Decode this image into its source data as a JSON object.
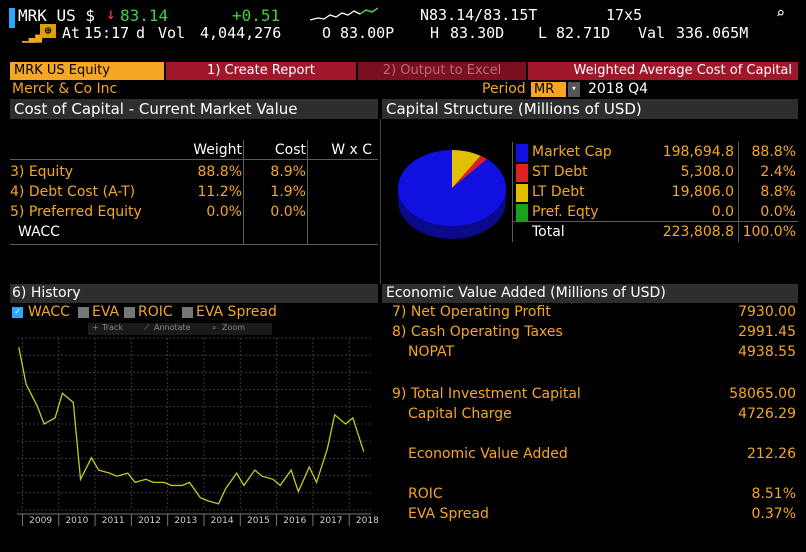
{
  "ticker_line": {
    "ticker": "MRK US $",
    "last_price": "83.14",
    "change": "+0.51",
    "bid_ask": "N83.14/83.15T",
    "size": "17x5",
    "search_icon": "magnifier-icon"
  },
  "quote_line": {
    "at_label": "At",
    "time": "15:17",
    "d": "d",
    "vol_label": "Vol",
    "volume": "4,044,276",
    "open_label": "O",
    "open": "83.00P",
    "high_label": "H",
    "high": "83.30D",
    "low_label": "L",
    "low": "82.71D",
    "val_label": "Val",
    "value": "336.065M"
  },
  "function_bar": {
    "security": "MRK US Equity",
    "create_report": "1) Create Report",
    "output_excel": "2) Output to Excel",
    "title": "Weighted Average Cost of Capital"
  },
  "header": {
    "company": "Merck & Co Inc",
    "period_label": "Period",
    "period_value": "MR",
    "period_date": "2018 Q4"
  },
  "cost_of_capital": {
    "title": "Cost of Capital - Current Market Value",
    "columns": [
      "Weight",
      "Cost",
      "W x C"
    ],
    "rows": [
      {
        "label": "3) Equity",
        "weight": "88.8%",
        "cost": "8.9%",
        "wxc": ""
      },
      {
        "label": "4) Debt Cost (A-T)",
        "weight": "11.2%",
        "cost": "1.9%",
        "wxc": ""
      },
      {
        "label": "5) Preferred Equity",
        "weight": "0.0%",
        "cost": "0.0%",
        "wxc": ""
      },
      {
        "label": "WACC",
        "weight": "",
        "cost": "",
        "wxc": ""
      }
    ]
  },
  "capital_structure": {
    "title": "Capital Structure (Millions of USD)",
    "rows": [
      {
        "label": "Market Cap",
        "value": "198,694.8",
        "pct": "88.8%",
        "color": "#1010e0"
      },
      {
        "label": "ST Debt",
        "value": "5,308.0",
        "pct": "2.4%",
        "color": "#e02020"
      },
      {
        "label": "LT Debt",
        "value": "19,806.0",
        "pct": "8.8%",
        "color": "#e0c000"
      },
      {
        "label": "Pref. Eqty",
        "value": "0.0",
        "pct": "0.0%",
        "color": "#1aa01a"
      },
      {
        "label": "Total",
        "value": "223,808.8",
        "pct": "100.0%",
        "color": ""
      }
    ]
  },
  "history": {
    "title": "6) History",
    "legend": [
      "WACC",
      "EVA",
      "ROIC",
      "EVA Spread"
    ],
    "tools": [
      "Track",
      "Annotate",
      "Zoom"
    ]
  },
  "chart_data": {
    "type": "line",
    "title": "",
    "xlabel": "",
    "ylabel": "",
    "categories": [
      "2009",
      "2010",
      "2011",
      "2012",
      "2013",
      "2014",
      "2015",
      "2016",
      "2017",
      "2018"
    ],
    "series": [
      {
        "name": "WACC",
        "color": "#c8c820",
        "points": [
          [
            2008.9,
            9.9
          ],
          [
            2009.1,
            8.7
          ],
          [
            2009.4,
            8.0
          ],
          [
            2009.6,
            7.4
          ],
          [
            2009.9,
            7.6
          ],
          [
            2010.1,
            8.4
          ],
          [
            2010.4,
            8.1
          ],
          [
            2010.6,
            5.6
          ],
          [
            2010.9,
            6.3
          ],
          [
            2011.1,
            5.9
          ],
          [
            2011.4,
            5.8
          ],
          [
            2011.6,
            5.7
          ],
          [
            2011.9,
            5.8
          ],
          [
            2012.1,
            5.5
          ],
          [
            2012.4,
            5.6
          ],
          [
            2012.6,
            5.5
          ],
          [
            2012.9,
            5.5
          ],
          [
            2013.1,
            5.4
          ],
          [
            2013.4,
            5.4
          ],
          [
            2013.6,
            5.5
          ],
          [
            2013.9,
            5.0
          ],
          [
            2014.1,
            4.9
          ],
          [
            2014.4,
            4.8
          ],
          [
            2014.6,
            5.3
          ],
          [
            2014.9,
            5.8
          ],
          [
            2015.1,
            5.4
          ],
          [
            2015.4,
            5.9
          ],
          [
            2015.6,
            5.7
          ],
          [
            2015.9,
            5.6
          ],
          [
            2016.1,
            5.4
          ],
          [
            2016.4,
            5.9
          ],
          [
            2016.6,
            5.2
          ],
          [
            2016.9,
            6.0
          ],
          [
            2017.1,
            5.5
          ],
          [
            2017.4,
            6.6
          ],
          [
            2017.6,
            7.7
          ],
          [
            2017.9,
            7.4
          ],
          [
            2018.1,
            7.6
          ],
          [
            2018.4,
            6.5
          ]
        ]
      }
    ],
    "xlim": [
      2008.85,
      2018.6
    ],
    "ylim": [
      4.6,
      10.2
    ],
    "grid": true
  },
  "eva": {
    "title": "Economic Value Added (Millions of USD)",
    "rows": [
      {
        "label": "7) Net Operating Profit",
        "value": "7930.00"
      },
      {
        "label": "8) Cash Operating Taxes",
        "value": "2991.45"
      },
      {
        "label": "NOPAT",
        "value": "4938.55"
      },
      {
        "label": "9) Total Investment Capital",
        "value": "58065.00"
      },
      {
        "label": "Capital Charge",
        "value": "4726.29"
      },
      {
        "label": "Economic Value Added",
        "value": "212.26"
      },
      {
        "label": "ROIC",
        "value": "8.51%"
      },
      {
        "label": "EVA Spread",
        "value": "0.37%"
      }
    ]
  }
}
